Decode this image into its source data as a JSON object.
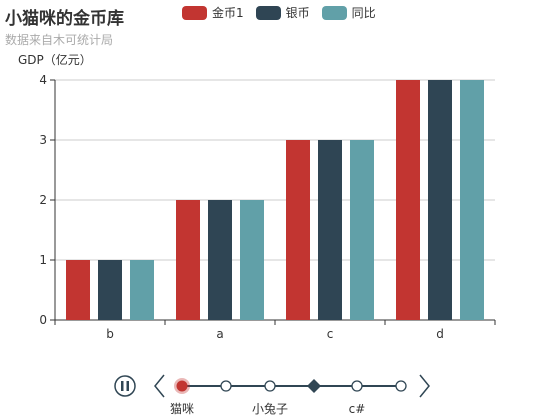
{
  "header": {
    "title": "小猫咪的金币库",
    "subtitle": "数据来自木可统计局"
  },
  "legend": [
    {
      "name": "金币1",
      "color": "#c23531"
    },
    {
      "name": "银币",
      "color": "#2f4554"
    },
    {
      "name": "同比",
      "color": "#61a0a8"
    }
  ],
  "chart_data": {
    "type": "bar",
    "ylabel": "GDP（亿元）",
    "xlabel": "",
    "categories": [
      "b",
      "a",
      "c",
      "d"
    ],
    "ylim": [
      0,
      4
    ],
    "yticks": [
      0,
      1,
      2,
      3,
      4
    ],
    "grid": true,
    "legend_position": "top",
    "series": [
      {
        "name": "金币1",
        "color": "#c23531",
        "values": [
          1,
          2,
          3,
          4
        ]
      },
      {
        "name": "银币",
        "color": "#2f4554",
        "values": [
          1,
          2,
          3,
          4
        ]
      },
      {
        "name": "同比",
        "color": "#61a0a8",
        "values": [
          1,
          2,
          3,
          4
        ]
      }
    ]
  },
  "timeline": {
    "labels": [
      "猫咪",
      "",
      "小兔子",
      "",
      "c#",
      ""
    ],
    "current_index": 3,
    "line_color": "#304654",
    "node_fill": "#ffffff",
    "first_node_color": "#c23531",
    "play_state": "paused"
  }
}
